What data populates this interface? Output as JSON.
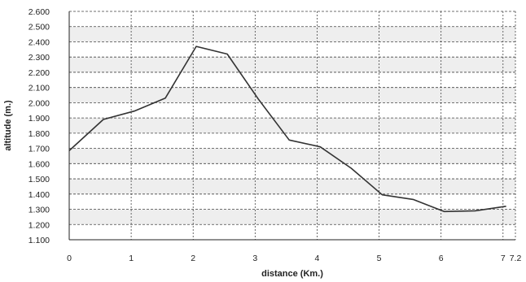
{
  "chart_data": {
    "type": "line",
    "title": "",
    "xlabel": "distance (Km.)",
    "ylabel": "altitude (m.)",
    "xlim": [
      0,
      7.2
    ],
    "ylim": [
      1100,
      2600
    ],
    "x_ticks": [
      0,
      1,
      2,
      3,
      4,
      5,
      6,
      7,
      7.2
    ],
    "x_tick_labels": [
      "0",
      "1",
      "2",
      "3",
      "4",
      "5",
      "6",
      "7",
      "7.2"
    ],
    "y_ticks": [
      1100,
      1200,
      1300,
      1400,
      1500,
      1600,
      1700,
      1800,
      1900,
      2000,
      2100,
      2200,
      2300,
      2400,
      2500,
      2600
    ],
    "y_tick_labels": [
      "1.100",
      "1.200",
      "1.300",
      "1.400",
      "1.500",
      "1.600",
      "1.700",
      "1.800",
      "1.900",
      "2.000",
      "2.100",
      "2.200",
      "2.300",
      "2.400",
      "2.500",
      "2.600"
    ],
    "grid": true,
    "alternating_bands": true,
    "legend": "none",
    "series": [
      {
        "x": [
          0,
          0.55,
          1.05,
          1.55,
          2.05,
          2.55,
          3.05,
          3.55,
          4.05,
          4.55,
          5.05,
          5.55,
          6.05,
          6.55,
          7.05
        ],
        "y": [
          1685,
          1890,
          1945,
          2030,
          2370,
          2320,
          2025,
          1755,
          1710,
          1570,
          1395,
          1365,
          1285,
          1290,
          1320
        ]
      }
    ],
    "colors": {
      "line": "#333333",
      "band": "#eeeeee",
      "grid": "#444444",
      "axis": "#222222"
    }
  }
}
